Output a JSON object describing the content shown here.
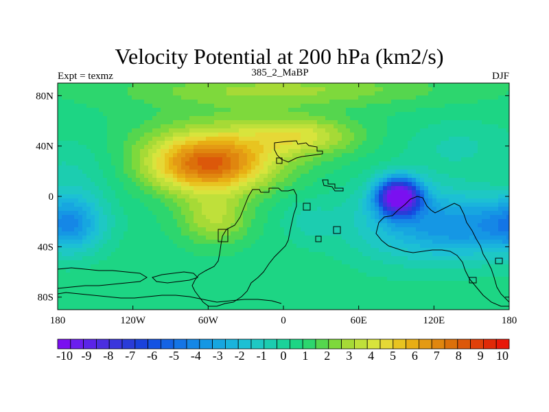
{
  "chart_data": {
    "type": "heatmap",
    "title": "Velocity Potential at 200 hPa (km2/s)",
    "left_label": "Expt = texmz",
    "center_label": "385_2_MaBP",
    "right_label": "DJF",
    "x_range": [
      -180,
      180
    ],
    "y_range": [
      -90,
      90
    ],
    "x_ticks": [
      {
        "value": -180,
        "label": "180"
      },
      {
        "value": -120,
        "label": "120W"
      },
      {
        "value": -60,
        "label": "60W"
      },
      {
        "value": 0,
        "label": "0"
      },
      {
        "value": 60,
        "label": "60E"
      },
      {
        "value": 120,
        "label": "120E"
      },
      {
        "value": 180,
        "label": "180"
      }
    ],
    "y_ticks": [
      {
        "value": 80,
        "label": "80N"
      },
      {
        "value": 40,
        "label": "40N"
      },
      {
        "value": 0,
        "label": "0"
      },
      {
        "value": -40,
        "label": "40S"
      },
      {
        "value": -80,
        "label": "80S"
      }
    ],
    "field_features": [
      {
        "name": "western-maximum",
        "lon": -60,
        "lat": 25,
        "value": 6.5
      },
      {
        "name": "eastern-minimum",
        "lon": 92,
        "lat": 0,
        "value": -10
      },
      {
        "name": "pacific-low",
        "lon": -170,
        "lat": -22,
        "value": -5
      },
      {
        "name": "east-pacific-low",
        "lon": 148,
        "lat": -25,
        "value": -5
      },
      {
        "name": "north-ridge",
        "lon": 30,
        "lat": 48,
        "value": 3
      },
      {
        "name": "arctic-high",
        "lon": 0,
        "lat": 85,
        "value": 1.5
      }
    ],
    "colorbar": {
      "levels": [
        -10,
        -9,
        -8,
        -7,
        -6,
        -5,
        -4,
        -3,
        -2,
        -1,
        0,
        1,
        2,
        3,
        4,
        5,
        6,
        7,
        8,
        9,
        10
      ],
      "labels": [
        "-10",
        "-9",
        "-8",
        "-7",
        "-6",
        "-5",
        "-4",
        "-3",
        "-2",
        "-1",
        "0",
        "1",
        "2",
        "3",
        "4",
        "5",
        "6",
        "7",
        "8",
        "9",
        "10"
      ],
      "colors": [
        "#7a10f0",
        "#6b1eee",
        "#5b24e8",
        "#4b2ee0",
        "#3a36dc",
        "#2a3cd8",
        "#1a42dc",
        "#1452e2",
        "#1463e4",
        "#1475e6",
        "#1587e6",
        "#1597e4",
        "#17a6e0",
        "#1ab4dc",
        "#1cc0d4",
        "#1ec8c4",
        "#1ccdb0",
        "#1bd29a",
        "#1dd584",
        "#2dd66e",
        "#55d64e",
        "#7ed93c",
        "#a6da36",
        "#bfe03a",
        "#d8e43c",
        "#e6d836",
        "#e8c420",
        "#e8ae14",
        "#e49a14",
        "#e0860e",
        "#dc700a",
        "#dc580a",
        "#e0400a",
        "#e02a08",
        "#e81808"
      ]
    }
  }
}
